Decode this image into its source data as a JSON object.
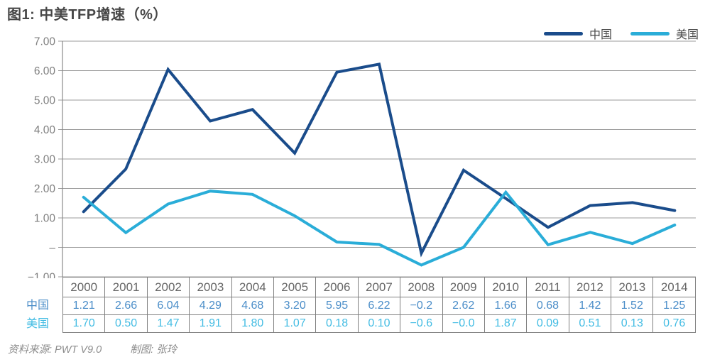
{
  "chart_data": {
    "type": "line",
    "title": "图1: 中美TFP增速（%）",
    "categories": [
      "2000",
      "2001",
      "2002",
      "2003",
      "2004",
      "2005",
      "2006",
      "2007",
      "2008",
      "2009",
      "2010",
      "2011",
      "2012",
      "2013",
      "2014"
    ],
    "series": [
      {
        "name": "中国",
        "color": "#1a4c8b",
        "values": [
          "1.21",
          "2.66",
          "6.04",
          "4.29",
          "4.68",
          "3.20",
          "5.95",
          "6.22",
          "−0.2",
          "2.62",
          "1.66",
          "0.68",
          "1.42",
          "1.52",
          "1.25"
        ]
      },
      {
        "name": "美国",
        "color": "#2aadd8",
        "values": [
          "1.70",
          "0.50",
          "1.47",
          "1.91",
          "1.80",
          "1.07",
          "0.18",
          "0.10",
          "−0.6",
          "−0.0",
          "1.87",
          "0.09",
          "0.51",
          "0.13",
          "0.76"
        ]
      }
    ],
    "xlabel": "",
    "ylabel": "",
    "ylim": [
      -1,
      7
    ],
    "y_ticks": [
      "7.00",
      "6.00",
      "5.00",
      "4.00",
      "3.00",
      "2.00",
      "1.00",
      "–",
      "−1.00"
    ],
    "grid": true,
    "legend_position": "top-right"
  },
  "colors": {
    "china_line": "#1a4c8b",
    "us_line": "#2aadd8",
    "china_text": "#4a8dc8",
    "us_text": "#43bce3",
    "gridline": "#9b9b9b",
    "axis": "#8a8a8a",
    "table_border": "#7f7f7f",
    "title_text": "#474747"
  },
  "footer": {
    "source": "资料来源: PWT V9.0",
    "credit": "制图: 张玲"
  }
}
